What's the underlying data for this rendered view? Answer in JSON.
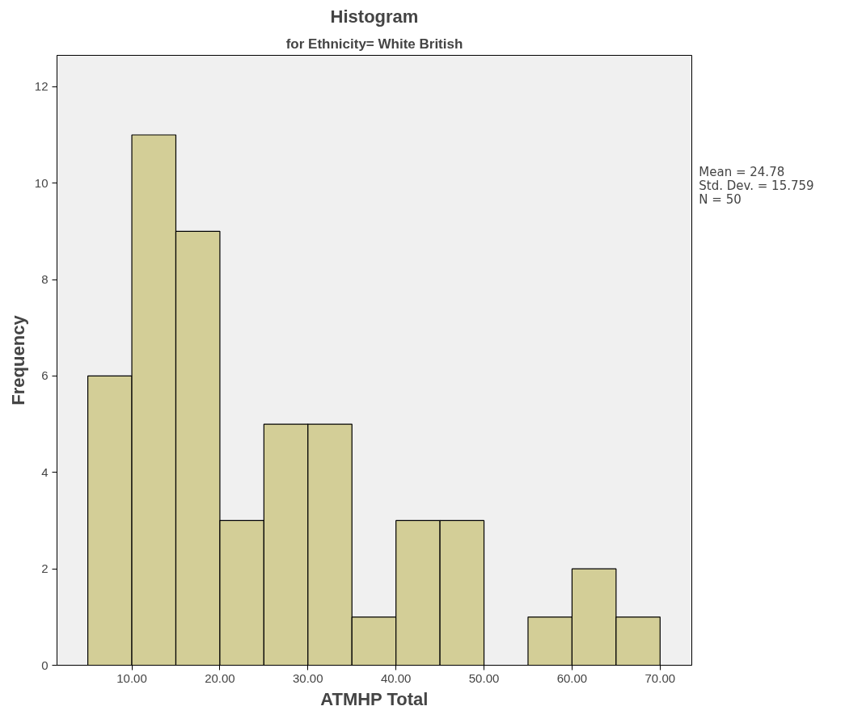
{
  "chart_data": {
    "type": "histogram",
    "title": "Histogram",
    "subtitle": "for Ethnicity= White British",
    "xlabel": "ATMHP Total",
    "ylabel": "Frequency",
    "bins": [
      5,
      10,
      15,
      20,
      25,
      30,
      35,
      40,
      45,
      50,
      55,
      60,
      65,
      70
    ],
    "values": [
      6,
      11,
      9,
      3,
      5,
      5,
      1,
      3,
      3,
      0,
      1,
      2,
      1
    ],
    "color": "#d3ce97",
    "xlim": [
      1.5,
      73.6
    ],
    "ylim": [
      0,
      12.65
    ],
    "xticks": [
      {
        "value": 10,
        "label": "10.00"
      },
      {
        "value": 20,
        "label": "20.00"
      },
      {
        "value": 30,
        "label": "30.00"
      },
      {
        "value": 40,
        "label": "40.00"
      },
      {
        "value": 50,
        "label": "50.00"
      },
      {
        "value": 60,
        "label": "60.00"
      },
      {
        "value": 70,
        "label": "70.00"
      }
    ],
    "yticks": [
      0,
      2,
      4,
      6,
      8,
      10,
      12
    ],
    "grid": false,
    "annotations": [
      "Mean = 24.78",
      "Std. Dev. = 15.759",
      "N = 50"
    ]
  }
}
